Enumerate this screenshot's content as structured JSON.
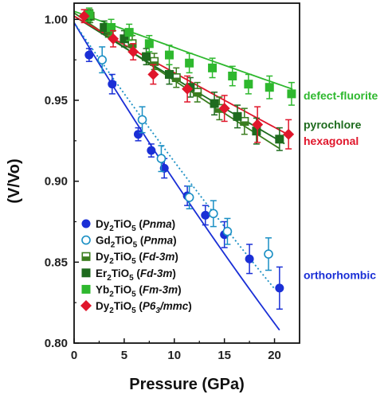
{
  "chart_data": {
    "type": "scatter",
    "xlabel": "Pressure (GPa)",
    "ylabel": "(V/Vo)",
    "xlim": [
      0,
      22.5
    ],
    "ylim": [
      0.8,
      1.01
    ],
    "x_ticks": [
      0,
      5,
      10,
      15,
      20
    ],
    "y_ticks": [
      0.8,
      0.85,
      0.9,
      0.95,
      1.0
    ],
    "x_tick_labels": [
      "0",
      "5",
      "10",
      "15",
      "20"
    ],
    "y_tick_labels": [
      "0.80",
      "0.85",
      "0.90",
      "0.95",
      "1.00"
    ],
    "legend_position": "bottom-left",
    "series": [
      {
        "chem": [
          "Dy",
          "2",
          "TiO",
          "5"
        ],
        "sg": "Pnma",
        "sg_sub": "",
        "marker": "circle-filled",
        "color": "#1a2fd6",
        "points": [
          [
            1.5,
            0.978,
            0.004
          ],
          [
            3.8,
            0.96,
            0.006
          ],
          [
            6.4,
            0.929,
            0.004
          ],
          [
            7.7,
            0.919,
            0.004
          ],
          [
            9.0,
            0.908,
            0.006
          ],
          [
            11.3,
            0.891,
            0.006
          ],
          [
            13.1,
            0.879,
            0.006
          ],
          [
            15.0,
            0.867,
            0.008
          ],
          [
            17.5,
            0.852,
            0.009
          ],
          [
            20.5,
            0.834,
            0.013
          ]
        ]
      },
      {
        "chem": [
          "Gd",
          "2",
          "TiO",
          "5"
        ],
        "sg": "Pnma",
        "sg_sub": "",
        "marker": "circle-open",
        "color": "#1a8fc4",
        "points": [
          [
            2.8,
            0.975,
            0.008
          ],
          [
            6.8,
            0.938,
            0.008
          ],
          [
            8.7,
            0.914,
            0.008
          ],
          [
            11.5,
            0.89,
            0.007
          ],
          [
            13.9,
            0.88,
            0.008
          ],
          [
            15.3,
            0.869,
            0.008
          ],
          [
            19.4,
            0.855,
            0.01
          ]
        ]
      },
      {
        "chem": [
          "Dy",
          "2",
          "TiO",
          "5"
        ],
        "sg": "Fd-3m",
        "sg_sub": "",
        "marker": "square-half",
        "color": "#3a7d1e",
        "points": [
          [
            1.6,
            1.002,
            0.004
          ],
          [
            3.4,
            0.993,
            0.004
          ],
          [
            5.8,
            0.985,
            0.005
          ],
          [
            8.0,
            0.974,
            0.005
          ],
          [
            10.2,
            0.964,
            0.006
          ],
          [
            12.3,
            0.955,
            0.006
          ],
          [
            14.5,
            0.945,
            0.007
          ],
          [
            17.0,
            0.937,
            0.008
          ]
        ]
      },
      {
        "chem": [
          "Er",
          "2",
          "TiO",
          "5"
        ],
        "sg": "Fd-3m",
        "sg_sub": "",
        "marker": "square-filled",
        "color": "#1e6b1e",
        "points": [
          [
            1.4,
            1.002,
            0.004
          ],
          [
            3.0,
            0.995,
            0.004
          ],
          [
            5.0,
            0.988,
            0.005
          ],
          [
            7.2,
            0.977,
            0.005
          ],
          [
            9.5,
            0.966,
            0.006
          ],
          [
            11.6,
            0.958,
            0.006
          ],
          [
            14.0,
            0.948,
            0.007
          ],
          [
            16.3,
            0.94,
            0.007
          ],
          [
            18.2,
            0.931,
            0.008
          ],
          [
            20.5,
            0.926,
            0.007
          ]
        ]
      },
      {
        "chem": [
          "Yb",
          "2",
          "TiO",
          "5"
        ],
        "sg": "Fm-3m",
        "sg_sub": "",
        "marker": "square-filled",
        "color": "#2eb82e",
        "points": [
          [
            1.5,
            1.003,
            0.004
          ],
          [
            3.7,
            0.995,
            0.005
          ],
          [
            5.5,
            0.992,
            0.005
          ],
          [
            7.5,
            0.985,
            0.005
          ],
          [
            9.5,
            0.978,
            0.006
          ],
          [
            11.5,
            0.973,
            0.006
          ],
          [
            13.8,
            0.97,
            0.006
          ],
          [
            15.8,
            0.965,
            0.006
          ],
          [
            17.4,
            0.96,
            0.006
          ],
          [
            19.5,
            0.958,
            0.007
          ],
          [
            21.7,
            0.954,
            0.007
          ]
        ]
      },
      {
        "chem": [
          "Dy",
          "2",
          "TiO",
          "5"
        ],
        "sg": "P6",
        "sg_sub": "3",
        "sg_suffix": "/mmc",
        "marker": "diamond-filled",
        "color": "#e0162b",
        "points": [
          [
            1.0,
            1.002,
            0.004
          ],
          [
            3.9,
            0.988,
            0.005
          ],
          [
            5.9,
            0.98,
            0.005
          ],
          [
            7.9,
            0.966,
            0.006
          ],
          [
            11.3,
            0.957,
            0.008
          ],
          [
            15.0,
            0.945,
            0.008
          ],
          [
            18.3,
            0.935,
            0.011
          ],
          [
            21.4,
            0.929,
            0.009
          ]
        ]
      }
    ],
    "fit_curves": [
      {
        "color": "#1a2fd6",
        "style": "solid",
        "v0": 0.998,
        "k": 0.0103,
        "xmax": 20.5
      },
      {
        "color": "#1a8fc4",
        "style": "dotted",
        "v0": 0.998,
        "k": 0.009,
        "xmax": 20.0
      },
      {
        "color": "#3a7d1e",
        "style": "solid",
        "v0": 1.004,
        "k": 0.00425,
        "xmax": 20.5
      },
      {
        "color": "#1e6b1e",
        "style": "solid",
        "v0": 1.002,
        "k": 0.0039,
        "xmax": 21.0
      },
      {
        "color": "#e0162b",
        "style": "solid",
        "v0": 1.002,
        "k": 0.00355,
        "xmax": 21.5
      },
      {
        "color": "#2eb82e",
        "style": "solid",
        "v0": 1.005,
        "k": 0.00225,
        "xmax": 21.8
      }
    ],
    "phase_labels": [
      {
        "text": "defect-fluorite",
        "color": "#2eb82e",
        "y_value": 0.953
      },
      {
        "text": "pyrochlore",
        "color": "#1e6b1e",
        "y_value": 0.935
      },
      {
        "text": "hexagonal",
        "color": "#e0162b",
        "y_value": 0.925
      },
      {
        "text": "orthorhombic",
        "color": "#1a2fd6",
        "y_value": 0.842
      }
    ]
  }
}
